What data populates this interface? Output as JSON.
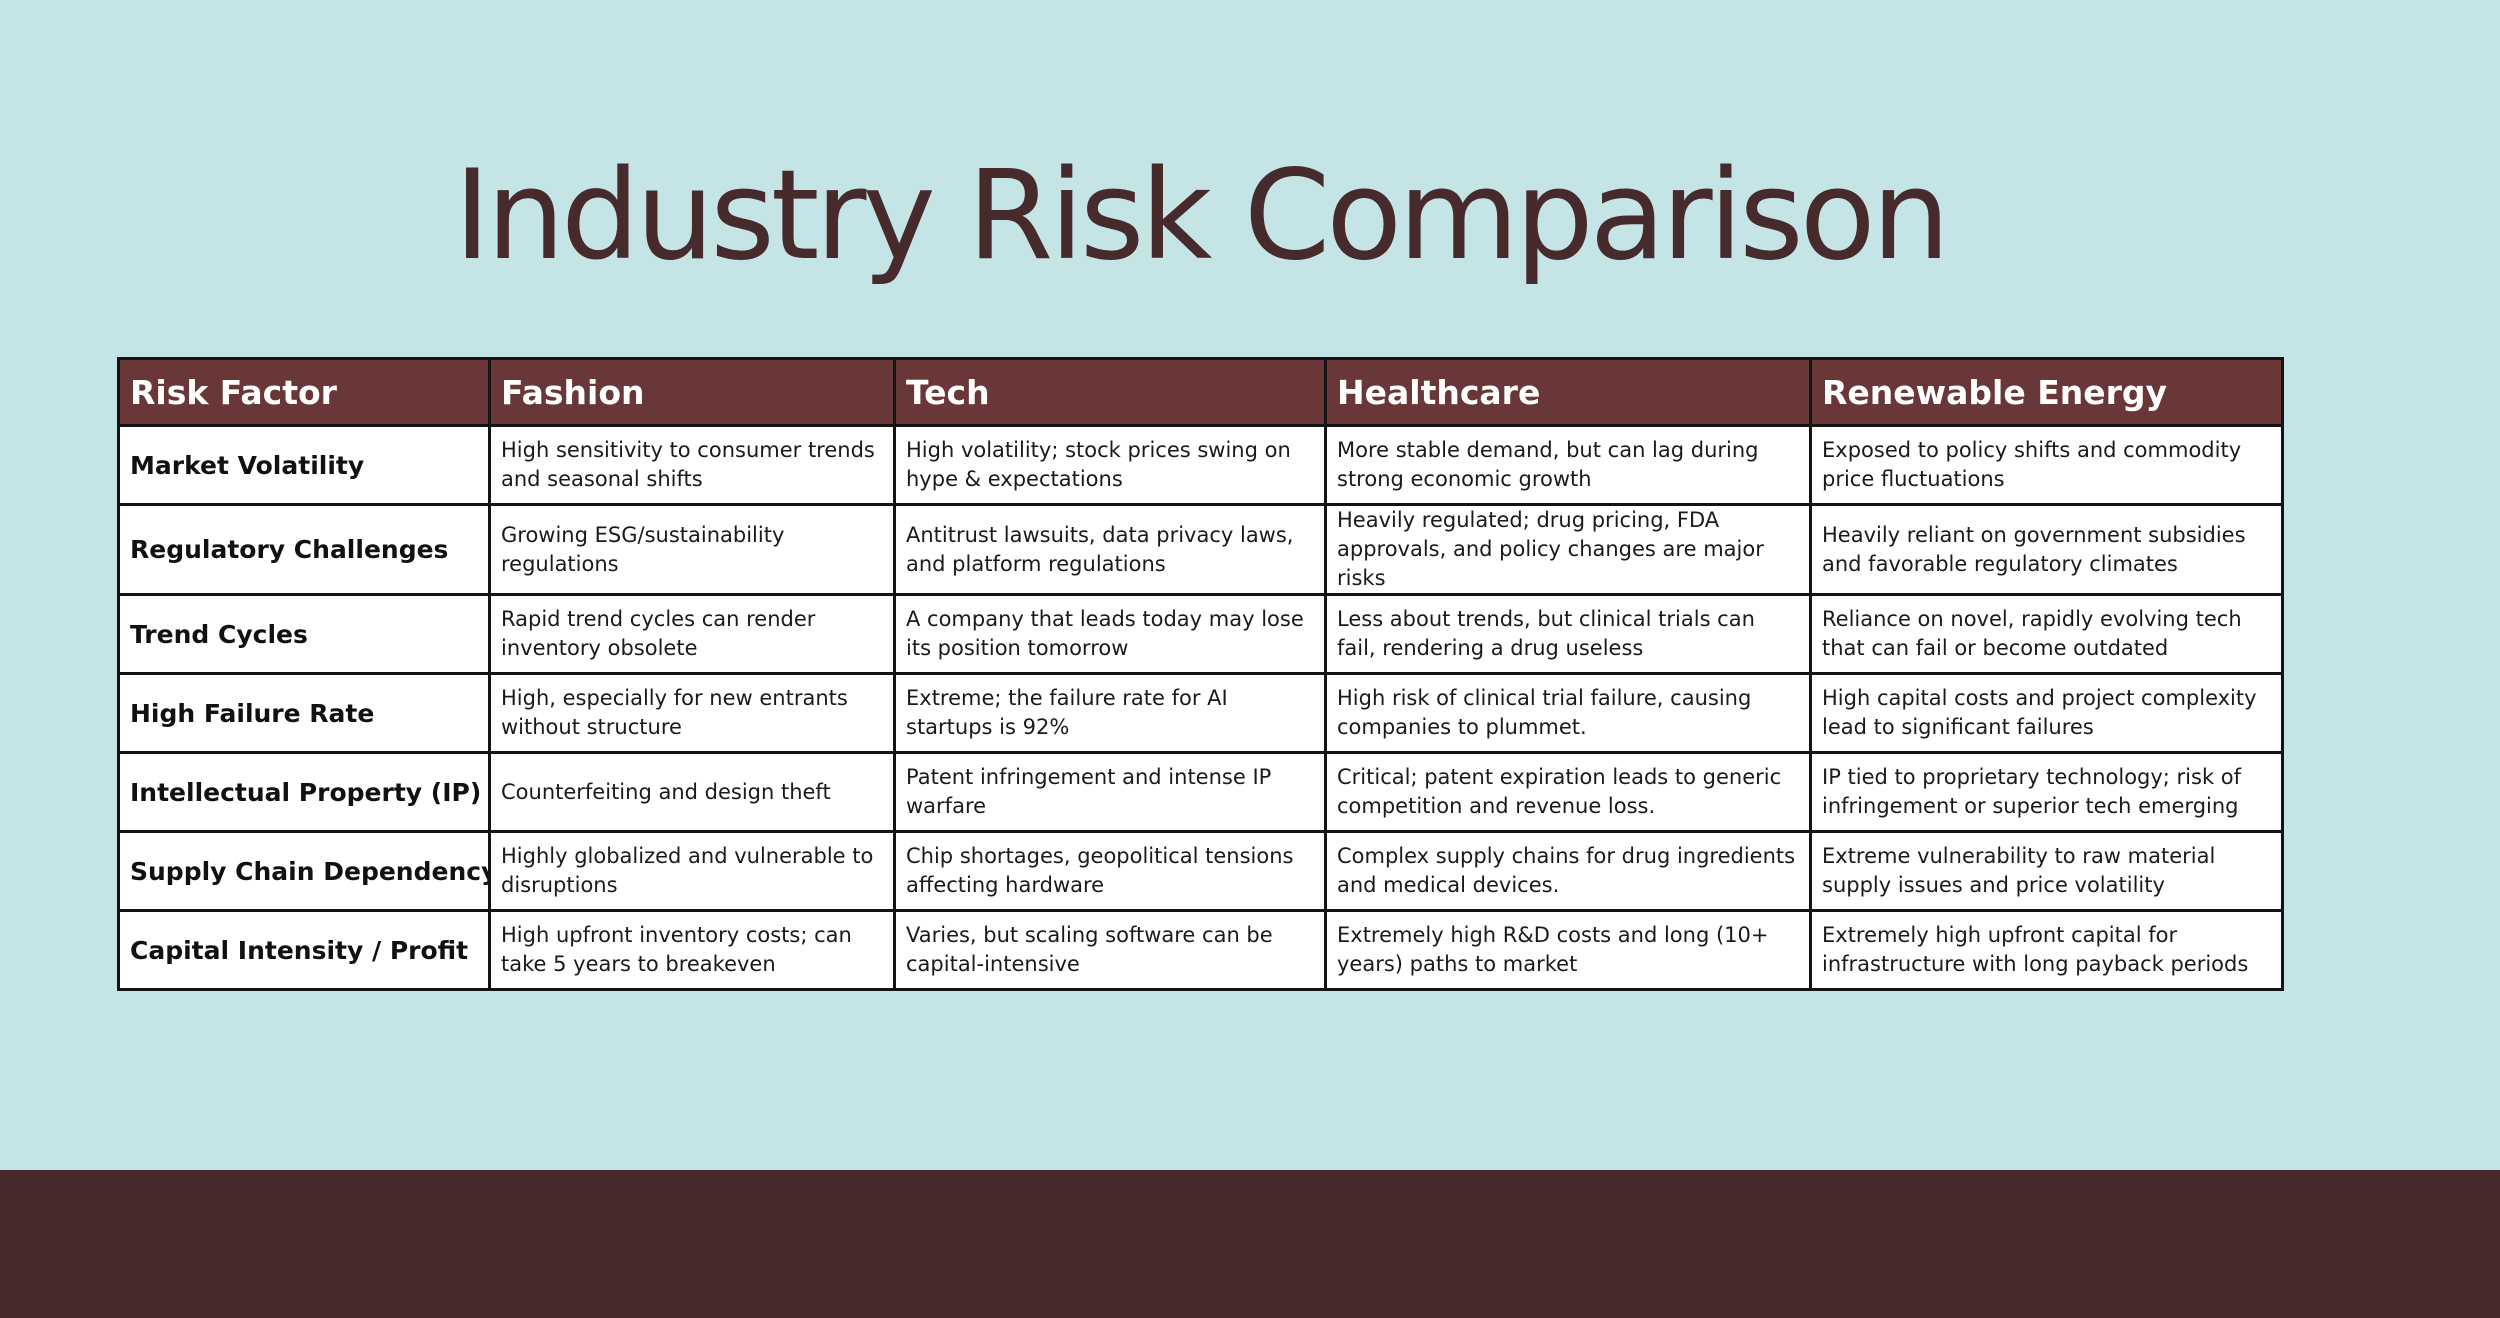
{
  "title": "Industry Risk Comparison",
  "colors": {
    "background": "#c5e4e6",
    "title_text": "#472a2b",
    "header_background": "#693737",
    "header_text": "#ffffff",
    "footer_band": "#472a2b"
  },
  "table": {
    "headers": [
      "Risk Factor",
      "Fashion",
      "Tech",
      "Healthcare",
      "Renewable Energy"
    ],
    "rows": [
      {
        "factor": "Market Volatility",
        "cells": [
          "High sensitivity to consumer trends and seasonal shifts",
          "High volatility; stock prices swing on hype & expectations",
          "More stable demand, but can lag during strong economic growth",
          "Exposed to policy shifts and commodity price fluctuations"
        ]
      },
      {
        "factor": "Regulatory Challenges",
        "cells": [
          "Growing ESG/sustainability regulations",
          "Antitrust lawsuits, data privacy laws, and platform regulations",
          "Heavily regulated; drug pricing, FDA approvals, and policy changes are major risks",
          "Heavily reliant on government subsidies and favorable regulatory climates"
        ]
      },
      {
        "factor": "Trend Cycles",
        "cells": [
          "Rapid trend cycles can render inventory obsolete",
          "A company that leads today may lose its position tomorrow",
          "Less about trends, but clinical trials can fail, rendering a drug useless",
          "Reliance on novel, rapidly evolving tech that can fail or become outdated"
        ]
      },
      {
        "factor": "High Failure Rate",
        "cells": [
          "High, especially for new entrants without structure",
          "Extreme; the failure rate for AI startups is 92%",
          "High risk of clinical trial failure, causing companies to plummet.",
          "High capital costs and project complexity lead to significant failures"
        ]
      },
      {
        "factor": "Intellectual Property (IP) Risk",
        "cells": [
          "Counterfeiting and design theft",
          "Patent infringement and intense IP warfare",
          "Critical; patent expiration leads to generic competition and revenue loss.",
          "IP tied to proprietary technology; risk of infringement or superior tech emerging"
        ]
      },
      {
        "factor": "Supply Chain Dependency",
        "cells": [
          "Highly globalized and vulnerable to disruptions",
          "Chip shortages, geopolitical tensions affecting hardware",
          "Complex supply chains for drug ingredients and medical devices.",
          "Extreme vulnerability to raw material supply issues and price volatility"
        ]
      },
      {
        "factor": "Capital Intensity / Profit",
        "cells": [
          "High upfront inventory costs; can take 5 years to breakeven",
          "Varies, but scaling software can be capital-intensive",
          "Extremely high R&D costs and long (10+ years) paths to market",
          "Extremely high upfront capital for infrastructure with long payback periods"
        ]
      }
    ]
  }
}
